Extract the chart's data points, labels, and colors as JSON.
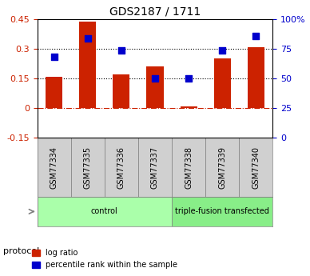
{
  "title": "GDS2187 / 1711",
  "samples": [
    "GSM77334",
    "GSM77335",
    "GSM77336",
    "GSM77337",
    "GSM77338",
    "GSM77339",
    "GSM77340"
  ],
  "log_ratio": [
    0.16,
    0.44,
    0.17,
    0.21,
    0.01,
    0.25,
    0.31
  ],
  "percentile_rank": [
    68,
    84,
    74,
    50,
    50,
    74,
    86
  ],
  "bar_color": "#cc2200",
  "dot_color": "#0000cc",
  "ylim_left": [
    -0.15,
    0.45
  ],
  "ylim_right": [
    0,
    100
  ],
  "yticks_left": [
    -0.15,
    0,
    0.15,
    0.3,
    0.45
  ],
  "ytick_labels_left": [
    "-0.15",
    "0",
    "0.15",
    "0.3",
    "0.45"
  ],
  "yticks_right": [
    0,
    25,
    50,
    75,
    100
  ],
  "ytick_labels_right": [
    "0",
    "25",
    "50",
    "75",
    "100%"
  ],
  "hlines_black": [
    0.15,
    0.3
  ],
  "hline_red": 0.0,
  "groups": [
    {
      "label": "control",
      "start": 0,
      "end": 4,
      "color": "#aaffaa"
    },
    {
      "label": "triple-fusion transfected",
      "start": 4,
      "end": 7,
      "color": "#88ee88"
    }
  ],
  "protocol_label": "protocol",
  "legend_items": [
    {
      "label": "log ratio",
      "color": "#cc2200"
    },
    {
      "label": "percentile rank within the sample",
      "color": "#0000cc"
    }
  ],
  "bar_width": 0.5
}
